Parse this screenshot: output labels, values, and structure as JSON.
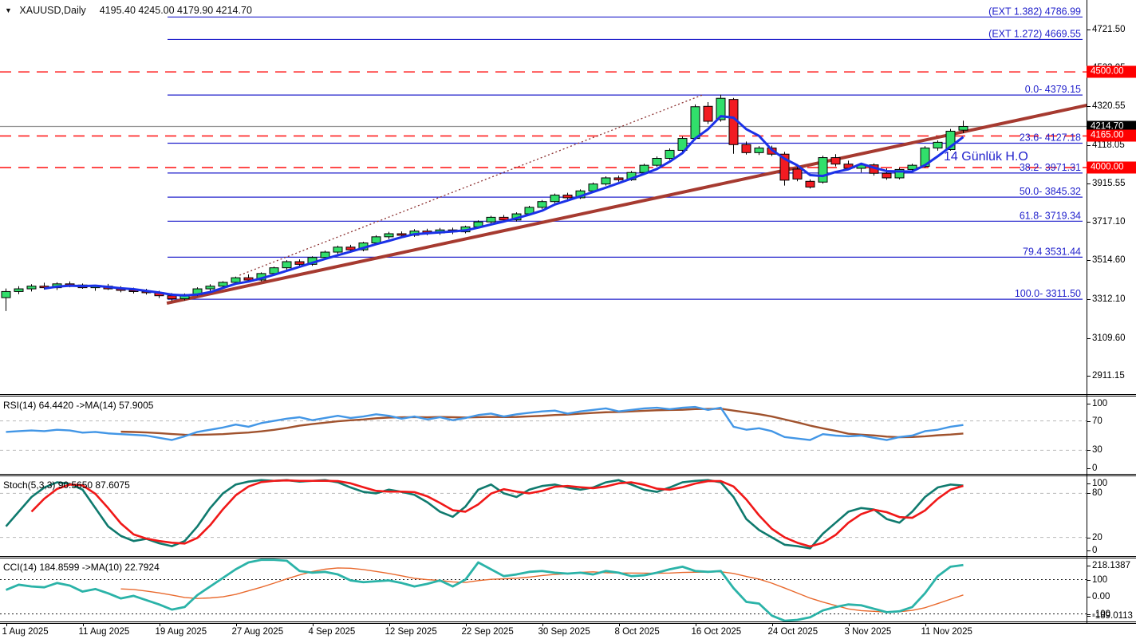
{
  "title": {
    "symbol_period": "XAUUSD,Daily",
    "ohlc": "4195.40 4245.00 4179.90 4214.70"
  },
  "annotation": {
    "ma_note": "14 Günlük H.O"
  },
  "colors": {
    "background": "#FFFFFF",
    "candle_up": "#31DF6B",
    "candle_down": "#F21B22",
    "candle_border": "#000000",
    "ma_blue": "#1A31E8",
    "trend_darkred": "#A63A30",
    "dotted_darkred": "#8B3030",
    "fib_blue": "#2222CC",
    "dashed_red": "#FF2020",
    "gray_line": "#909090",
    "rsi_blue": "#4296E6",
    "rsi_brown": "#A0522D",
    "stoch_teal": "#0F7A6E",
    "stoch_red": "#F01818",
    "cci_teal": "#2BB3A8",
    "cci_orange": "#E96A2E",
    "pane_level_gray": "#C0C0C0",
    "cci_level_black": "#202020",
    "marker_black_bg": "#000000",
    "marker_red_bg": "#FE0000",
    "marker_text": "#FFFFFF",
    "axis_text": "#000000"
  },
  "chart_data": {
    "type": "candlestick",
    "symbol": "XAUUSD",
    "timeframe": "Daily",
    "main": {
      "x_tick_labels": [
        "1 Aug 2025",
        "11 Aug 2025",
        "19 Aug 2025",
        "27 Aug 2025",
        "4 Sep 2025",
        "12 Sep 2025",
        "22 Sep 2025",
        "30 Sep 2025",
        "8 Oct 2025",
        "16 Oct 2025",
        "24 Oct 2025",
        "3 Nov 2025",
        "11 Nov 2025"
      ],
      "x_tick_step": 6,
      "y_tick_labels": [
        "4721.50",
        "4523.05",
        "4320.55",
        "4118.05",
        "3915.55",
        "3717.10",
        "3514.60",
        "3312.10",
        "3109.60",
        "2911.15"
      ],
      "candles_ohlc": [
        [
          3320,
          3368,
          3250,
          3352
        ],
        [
          3352,
          3380,
          3338,
          3366
        ],
        [
          3366,
          3390,
          3352,
          3380
        ],
        [
          3380,
          3398,
          3362,
          3372
        ],
        [
          3372,
          3400,
          3360,
          3392
        ],
        [
          3392,
          3405,
          3374,
          3386
        ],
        [
          3386,
          3394,
          3366,
          3372
        ],
        [
          3372,
          3386,
          3356,
          3380
        ],
        [
          3380,
          3392,
          3360,
          3366
        ],
        [
          3366,
          3380,
          3348,
          3358
        ],
        [
          3358,
          3372,
          3342,
          3352
        ],
        [
          3352,
          3366,
          3336,
          3346
        ],
        [
          3346,
          3356,
          3318,
          3330
        ],
        [
          3330,
          3344,
          3302,
          3314
        ],
        [
          3314,
          3342,
          3306,
          3336
        ],
        [
          3336,
          3374,
          3328,
          3366
        ],
        [
          3366,
          3390,
          3352,
          3380
        ],
        [
          3380,
          3406,
          3370,
          3400
        ],
        [
          3400,
          3430,
          3390,
          3424
        ],
        [
          3424,
          3442,
          3404,
          3412
        ],
        [
          3412,
          3452,
          3406,
          3446
        ],
        [
          3446,
          3482,
          3438,
          3476
        ],
        [
          3476,
          3516,
          3466,
          3508
        ],
        [
          3508,
          3520,
          3482,
          3494
        ],
        [
          3494,
          3536,
          3486,
          3530
        ],
        [
          3530,
          3566,
          3520,
          3558
        ],
        [
          3558,
          3592,
          3548,
          3584
        ],
        [
          3584,
          3596,
          3560,
          3570
        ],
        [
          3570,
          3612,
          3562,
          3606
        ],
        [
          3606,
          3646,
          3598,
          3638
        ],
        [
          3638,
          3664,
          3626,
          3654
        ],
        [
          3654,
          3666,
          3634,
          3646
        ],
        [
          3646,
          3678,
          3638,
          3668
        ],
        [
          3668,
          3680,
          3646,
          3658
        ],
        [
          3658,
          3684,
          3648,
          3674
        ],
        [
          3674,
          3686,
          3652,
          3664
        ],
        [
          3664,
          3696,
          3656,
          3690
        ],
        [
          3690,
          3724,
          3682,
          3716
        ],
        [
          3716,
          3748,
          3708,
          3740
        ],
        [
          3740,
          3752,
          3716,
          3726
        ],
        [
          3726,
          3766,
          3718,
          3758
        ],
        [
          3758,
          3800,
          3750,
          3792
        ],
        [
          3792,
          3830,
          3784,
          3822
        ],
        [
          3822,
          3864,
          3814,
          3856
        ],
        [
          3856,
          3868,
          3832,
          3842
        ],
        [
          3842,
          3886,
          3836,
          3878
        ],
        [
          3878,
          3922,
          3870,
          3914
        ],
        [
          3914,
          3954,
          3906,
          3946
        ],
        [
          3946,
          3958,
          3926,
          3936
        ],
        [
          3936,
          3982,
          3930,
          3974
        ],
        [
          3974,
          4020,
          3966,
          4012
        ],
        [
          4012,
          4058,
          4004,
          4048
        ],
        [
          4048,
          4100,
          4040,
          4090
        ],
        [
          4090,
          4162,
          4080,
          4152
        ],
        [
          4152,
          4330,
          4142,
          4318
        ],
        [
          4320,
          4342,
          4228,
          4242
        ],
        [
          4250,
          4381,
          4240,
          4362
        ],
        [
          4356,
          4364,
          4072,
          4120
        ],
        [
          4120,
          4136,
          4068,
          4078
        ],
        [
          4078,
          4112,
          4066,
          4102
        ],
        [
          4102,
          4114,
          4060,
          4070
        ],
        [
          4070,
          4082,
          3906,
          3934
        ],
        [
          3992,
          4002,
          3928,
          3940
        ],
        [
          3928,
          3938,
          3890,
          3898
        ],
        [
          3924,
          4062,
          3916,
          4052
        ],
        [
          4052,
          4070,
          4006,
          4018
        ],
        [
          4018,
          4036,
          3986,
          3996
        ],
        [
          3996,
          4024,
          3974,
          4014
        ],
        [
          4014,
          4022,
          3958,
          3970
        ],
        [
          3970,
          3996,
          3936,
          3946
        ],
        [
          3946,
          3998,
          3938,
          3990
        ],
        [
          3990,
          4020,
          3982,
          4012
        ],
        [
          4006,
          4112,
          3998,
          4102
        ],
        [
          4102,
          4142,
          4088,
          4132
        ],
        [
          4094,
          4202,
          4088,
          4190
        ],
        [
          4195.4,
          4245,
          4179.9,
          4214.7
        ]
      ],
      "ma_window": 4,
      "fib_levels": [
        {
          "text": "(EXT 1.382)  4786.99",
          "price": 4786.99
        },
        {
          "text": "(EXT 1.272)  4669.55",
          "price": 4669.55
        },
        {
          "text": "0.0- 4379.15",
          "price": 4379.15
        },
        {
          "text": "23.6- 4127.18",
          "price": 4127.18
        },
        {
          "text": "38.2- 3971.31",
          "price": 3971.31
        },
        {
          "text": "50.0- 3845.32",
          "price": 3845.32
        },
        {
          "text": "61.8- 3719.34",
          "price": 3719.34
        },
        {
          "text": "79.4 3531.44",
          "price": 3531.44
        },
        {
          "text": "100.0- 3311.50",
          "price": 3311.5
        }
      ],
      "red_dashed_levels": [
        4500.0,
        4165.0,
        4000.0
      ],
      "gray_level": 4214.7,
      "price_markers": [
        {
          "text": "4214.70",
          "price": 4214.7,
          "style": "black"
        },
        {
          "text": "4500.00",
          "price": 4500.0,
          "style": "red"
        },
        {
          "text": "4165.00",
          "price": 4165.0,
          "style": "red"
        },
        {
          "text": "4000.00",
          "price": 4000.0,
          "style": "red"
        }
      ],
      "trendline": {
        "i1": 12.6,
        "p1": 3291,
        "i2": 84.7,
        "p2": 4326
      },
      "dotted_line": {
        "i1": 18.3,
        "p1": 3437,
        "i2": 54.7,
        "p2": 4383
      }
    },
    "rsi": {
      "label": "RSI(14) 64.4420  ->MA(14) 57.9005",
      "current": 64.442,
      "ma_current": 57.9005,
      "axis": [
        {
          "t": "100",
          "v": 100
        },
        {
          "t": "70",
          "v": 70
        },
        {
          "t": "30",
          "v": 30
        },
        {
          "t": "0",
          "v": 0
        }
      ],
      "level_lines": [
        70,
        30
      ],
      "values": [
        55,
        56,
        57,
        56,
        58,
        57,
        54,
        55,
        53,
        52,
        51,
        50,
        47,
        44,
        49,
        55,
        58,
        61,
        65,
        62,
        67,
        70,
        73,
        75,
        71,
        74,
        77,
        74,
        76,
        79,
        77,
        73,
        76,
        72,
        75,
        71,
        74,
        78,
        80,
        76,
        79,
        81,
        83,
        84,
        80,
        83,
        85,
        87,
        83,
        85,
        87,
        88,
        86,
        88,
        89,
        85,
        88,
        62,
        58,
        60,
        56,
        48,
        46,
        44,
        52,
        50,
        49,
        50,
        47,
        44,
        48,
        50,
        56,
        58,
        62,
        64.44
      ],
      "ma_window": 10
    },
    "stoch": {
      "label": "Stoch(5,3,3) 90.5650 87.6075",
      "current_k": 90.565,
      "current_d": 87.6075,
      "axis": [
        {
          "t": "100",
          "v": 100
        },
        {
          "t": "80",
          "v": 80
        },
        {
          "t": "20",
          "v": 20
        },
        {
          "t": "0",
          "v": 0
        }
      ],
      "level_lines": [
        80,
        20
      ],
      "k_values": [
        35,
        55,
        75,
        88,
        95,
        93,
        85,
        60,
        35,
        22,
        15,
        18,
        12,
        8,
        15,
        35,
        60,
        80,
        92,
        96,
        98,
        97,
        98,
        96,
        97,
        98,
        95,
        88,
        82,
        80,
        85,
        82,
        78,
        68,
        55,
        48,
        62,
        85,
        92,
        80,
        75,
        85,
        90,
        92,
        88,
        85,
        88,
        95,
        98,
        92,
        85,
        82,
        88,
        95,
        97,
        98,
        95,
        75,
        45,
        30,
        20,
        10,
        8,
        5,
        25,
        40,
        55,
        60,
        58,
        45,
        40,
        55,
        75,
        88,
        92,
        90.57
      ],
      "d_window": 3
    },
    "cci": {
      "label": "CCI(14) 184.8599  ->MA(10) 22.7924",
      "current": 184.8599,
      "ma_current": 22.7924,
      "axis": [
        {
          "t": "218.1387",
          "v": 218.1387
        },
        {
          "t": "100",
          "v": 100
        },
        {
          "t": "0.00",
          "v": 0
        },
        {
          "t": "-100",
          "v": -100
        },
        {
          "t": "-189.0113",
          "v": -189.0113
        }
      ],
      "level_lines": [
        100,
        -100
      ],
      "values": [
        40,
        70,
        60,
        55,
        80,
        65,
        30,
        45,
        20,
        -10,
        5,
        -20,
        -45,
        -75,
        -60,
        10,
        60,
        110,
        160,
        200,
        215,
        215,
        210,
        150,
        140,
        145,
        130,
        95,
        85,
        90,
        95,
        80,
        60,
        75,
        95,
        60,
        100,
        200,
        160,
        120,
        130,
        145,
        150,
        140,
        135,
        140,
        130,
        150,
        140,
        120,
        125,
        140,
        160,
        175,
        150,
        145,
        150,
        50,
        -30,
        -40,
        -110,
        -140,
        -135,
        -120,
        -80,
        -60,
        -45,
        -50,
        -70,
        -90,
        -85,
        -60,
        20,
        120,
        175,
        184.9
      ],
      "ma_window": 10
    }
  }
}
